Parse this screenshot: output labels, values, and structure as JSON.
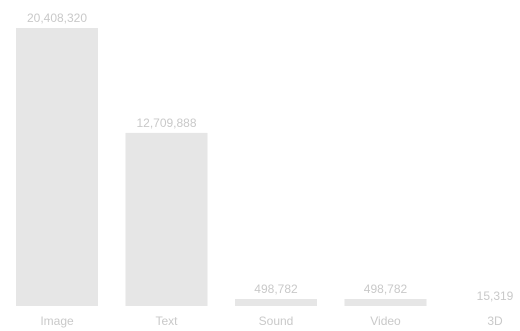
{
  "chart_data": {
    "type": "bar",
    "categories": [
      "Image",
      "Text",
      "Sound",
      "Video",
      "3D"
    ],
    "values": [
      20408320,
      12709888,
      498782,
      498782,
      15319
    ],
    "value_labels": [
      "20,408,320",
      "12,709,888",
      "498,782",
      "498,782",
      "15,319"
    ],
    "ylim": [
      0,
      20408320
    ],
    "grid": false,
    "legend": "none",
    "colors": {
      "bar": "#e6e6e6",
      "text": "#c9c9c9"
    }
  }
}
